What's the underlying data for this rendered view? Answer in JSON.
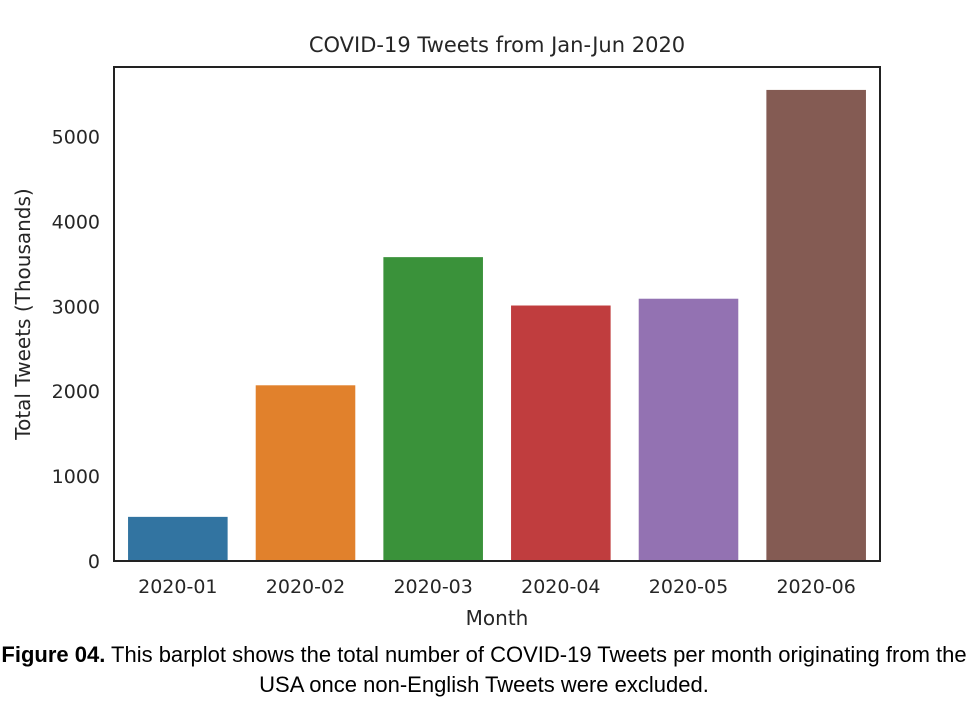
{
  "chart_data": {
    "type": "bar",
    "title": "COVID-19 Tweets from Jan-Jun 2020",
    "xlabel": "Month",
    "ylabel": "Total Tweets (Thousands)",
    "categories": [
      "2020-01",
      "2020-02",
      "2020-03",
      "2020-04",
      "2020-05",
      "2020-06"
    ],
    "values": [
      520,
      2070,
      3580,
      3010,
      3090,
      5550
    ],
    "colors": [
      "#3274a1",
      "#e1812c",
      "#3a923a",
      "#c03d3e",
      "#9372b2",
      "#845b53"
    ],
    "yticks": [
      0,
      1000,
      2000,
      3000,
      4000,
      5000
    ],
    "ylim": [
      0,
      5820
    ],
    "grid": false,
    "legend": "none"
  },
  "caption": {
    "label": "Figure 04.",
    "text": " This barplot shows the total number of COVID-19 Tweets per month originating from the USA once non-English Tweets were excluded."
  }
}
